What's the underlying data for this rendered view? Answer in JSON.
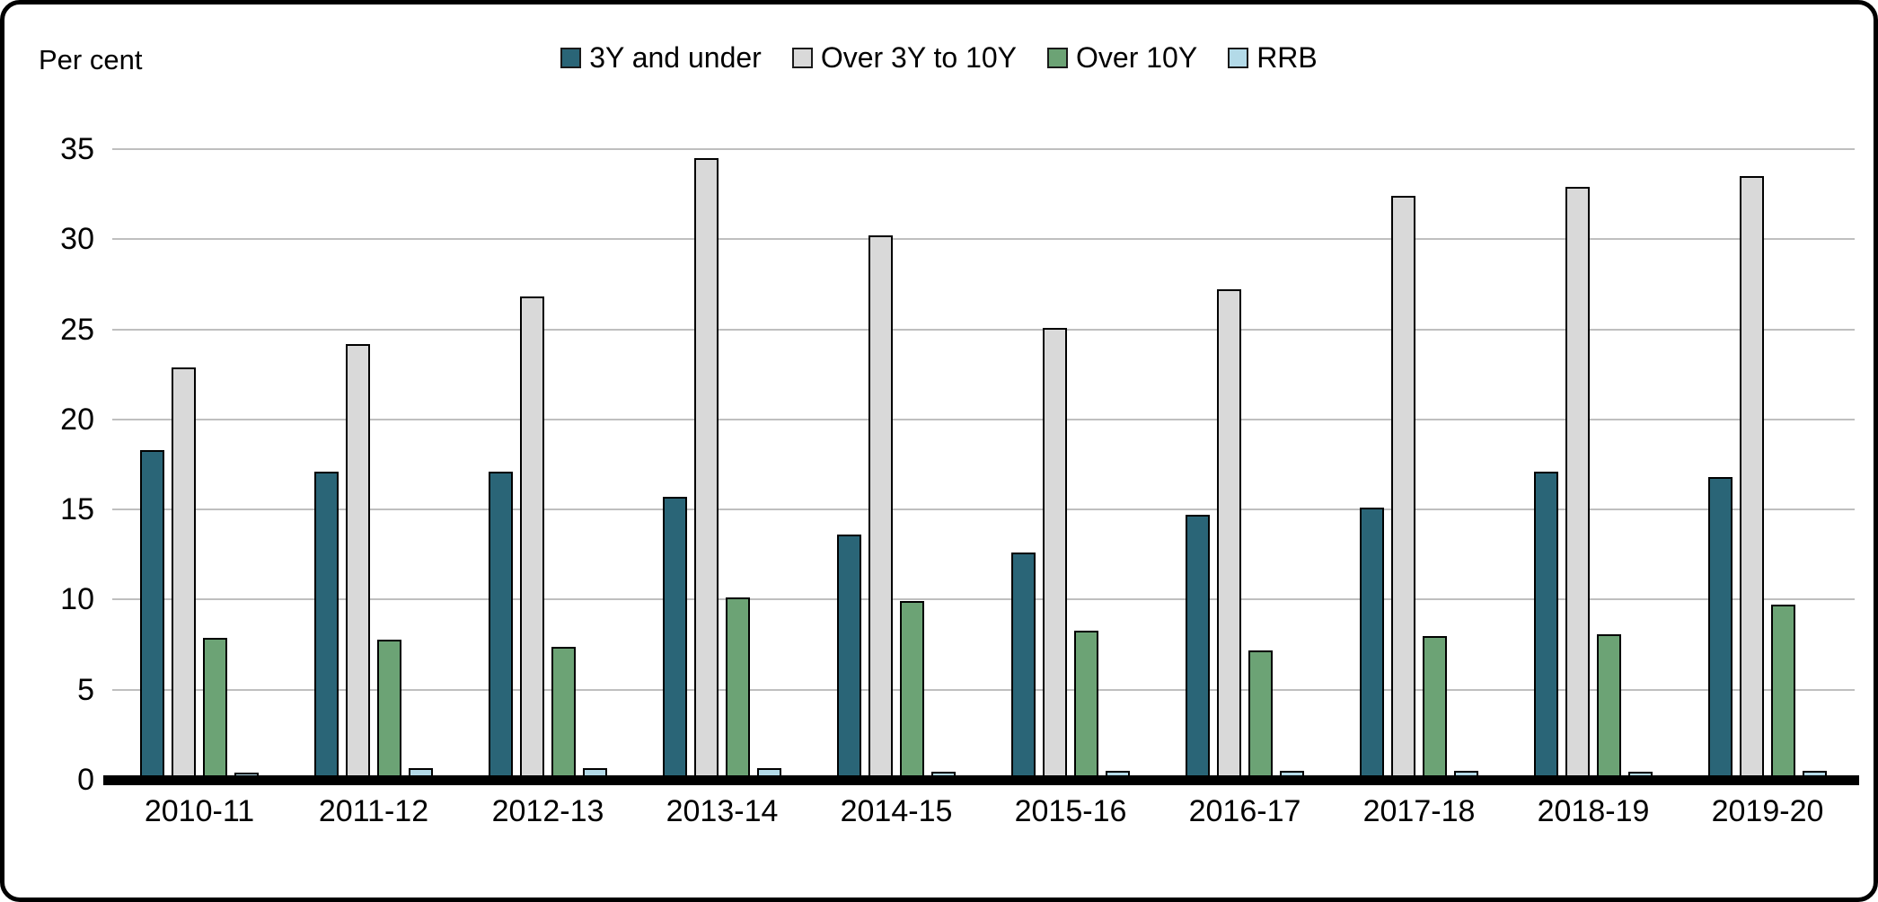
{
  "chart": {
    "unit_label": "Per cent",
    "y_ticks": [
      0,
      5,
      10,
      15,
      20,
      25,
      30,
      35
    ]
  },
  "chart_data": {
    "type": "bar",
    "title": "",
    "xlabel": "",
    "ylabel": "Per cent",
    "ylim": [
      0,
      35
    ],
    "grid": true,
    "grid_color": "#bfbfbf",
    "axis_color": "#000000",
    "legend_position": "top-center",
    "categories": [
      "2010-11",
      "2011-12",
      "2012-13",
      "2013-14",
      "2014-15",
      "2015-16",
      "2016-17",
      "2017-18",
      "2018-19",
      "2019-20"
    ],
    "series": [
      {
        "name": "3Y and under",
        "color": "#2a6577",
        "values": [
          18.3,
          17.1,
          17.1,
          15.7,
          13.6,
          12.6,
          14.7,
          15.1,
          17.1,
          16.8
        ]
      },
      {
        "name": "Over 3Y to 10Y",
        "color": "#d9d9d9",
        "values": [
          22.9,
          24.2,
          26.8,
          34.5,
          30.2,
          25.1,
          27.2,
          32.4,
          32.9,
          33.5
        ]
      },
      {
        "name": "Over 10Y",
        "color": "#6ca375",
        "values": [
          7.9,
          7.8,
          7.4,
          10.1,
          9.9,
          8.3,
          7.2,
          8.0,
          8.1,
          9.7
        ]
      },
      {
        "name": "RRB",
        "color": "#b3dae8",
        "values": [
          0.4,
          0.65,
          0.65,
          0.65,
          0.45,
          0.5,
          0.5,
          0.5,
          0.45,
          0.5
        ]
      }
    ]
  }
}
